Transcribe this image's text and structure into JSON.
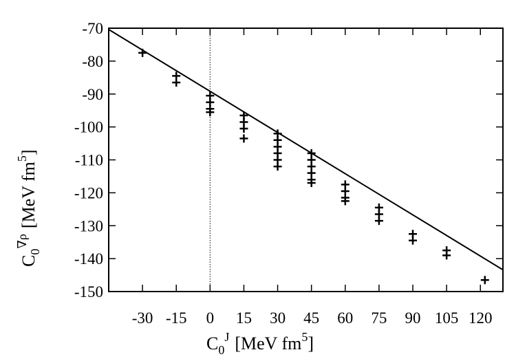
{
  "chart_data": {
    "type": "scatter",
    "xlabel": {
      "main": "C",
      "subscript": "0",
      "superscript": "J",
      "unit": "[MeV fm",
      "unit_superscript": "5",
      "unit_close": "]"
    },
    "ylabel": {
      "main": "C",
      "subscript": "0",
      "superscript": "∇ρ",
      "unit": "[MeV fm",
      "unit_superscript": "5",
      "unit_close": "]"
    },
    "xlim": [
      -45,
      130
    ],
    "ylim": [
      -150,
      -70
    ],
    "xticks": [
      -30,
      -15,
      0,
      15,
      30,
      45,
      60,
      75,
      90,
      105,
      120
    ],
    "yticks": [
      -70,
      -80,
      -90,
      -100,
      -110,
      -120,
      -130,
      -140,
      -150
    ],
    "grid": false,
    "vertical_reference_line": {
      "x": 0,
      "style": "dotted"
    },
    "line": {
      "x": [
        -45,
        130
      ],
      "y": [
        -70.4,
        -143.4
      ]
    },
    "points": [
      {
        "x": -30,
        "y": -77.5
      },
      {
        "x": -15,
        "y": -84.5
      },
      {
        "x": -15,
        "y": -86.5
      },
      {
        "x": 0,
        "y": -90.5
      },
      {
        "x": 0,
        "y": -92.5
      },
      {
        "x": 0,
        "y": -94.5
      },
      {
        "x": 0,
        "y": -95.5
      },
      {
        "x": 15,
        "y": -96.5
      },
      {
        "x": 15,
        "y": -98.5
      },
      {
        "x": 15,
        "y": -100.5
      },
      {
        "x": 15,
        "y": -103.5
      },
      {
        "x": 30,
        "y": -102
      },
      {
        "x": 30,
        "y": -104
      },
      {
        "x": 30,
        "y": -106
      },
      {
        "x": 30,
        "y": -108
      },
      {
        "x": 30,
        "y": -110
      },
      {
        "x": 30,
        "y": -112
      },
      {
        "x": 45,
        "y": -108
      },
      {
        "x": 45,
        "y": -110
      },
      {
        "x": 45,
        "y": -112
      },
      {
        "x": 45,
        "y": -114
      },
      {
        "x": 45,
        "y": -116
      },
      {
        "x": 45,
        "y": -117
      },
      {
        "x": 60,
        "y": -117.5
      },
      {
        "x": 60,
        "y": -119.5
      },
      {
        "x": 60,
        "y": -121.5
      },
      {
        "x": 60,
        "y": -122.5
      },
      {
        "x": 75,
        "y": -124.5
      },
      {
        "x": 75,
        "y": -126.5
      },
      {
        "x": 75,
        "y": -128.5
      },
      {
        "x": 90,
        "y": -132.5
      },
      {
        "x": 90,
        "y": -134.5
      },
      {
        "x": 105,
        "y": -137.5
      },
      {
        "x": 105,
        "y": -139
      },
      {
        "x": 122,
        "y": -146.5
      }
    ]
  }
}
